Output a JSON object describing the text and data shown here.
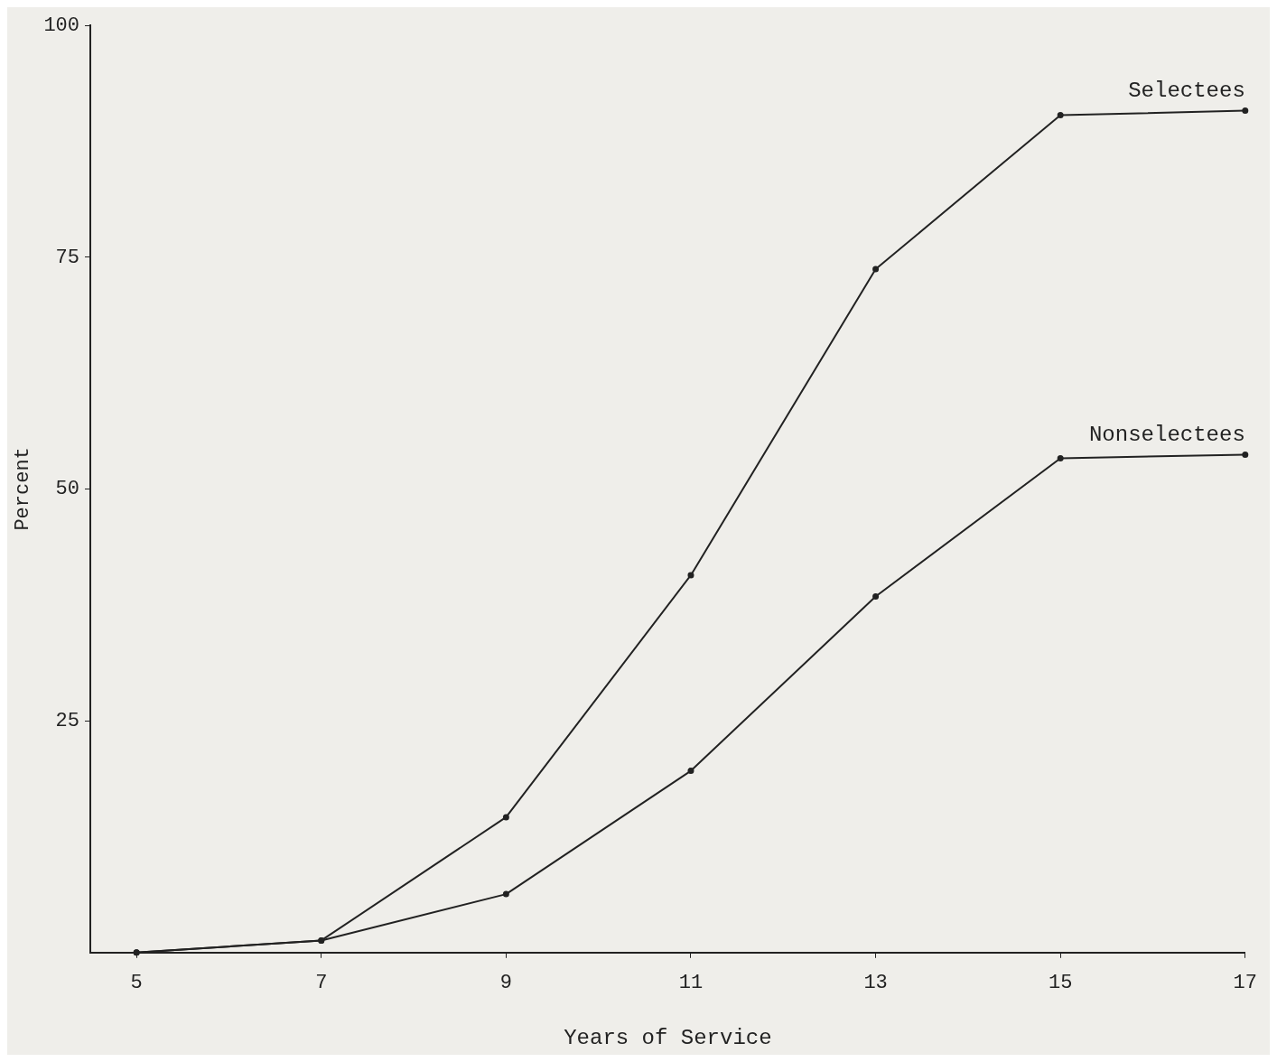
{
  "chart_data": {
    "type": "line",
    "xlabel": "Years of Service",
    "ylabel": "Percent",
    "x": [
      5,
      7,
      9,
      11,
      13,
      15,
      17
    ],
    "series": [
      {
        "name": "Selectees",
        "color": "#222222",
        "values": [
          0,
          1.3,
          14.6,
          40.7,
          73.7,
          90.3,
          90.8
        ]
      },
      {
        "name": "Nonselectees",
        "color": "#222222",
        "values": [
          0,
          1.3,
          6.3,
          19.6,
          38.4,
          53.3,
          53.7
        ]
      }
    ],
    "xlim": [
      4.5,
      17
    ],
    "xticks": [
      5,
      7,
      9,
      11,
      13,
      15,
      17
    ],
    "ylim": [
      0,
      100
    ],
    "yticks": [
      25,
      50,
      75,
      100
    ],
    "grid": false,
    "legend": false,
    "marker": "circle",
    "line_style": "solid"
  }
}
